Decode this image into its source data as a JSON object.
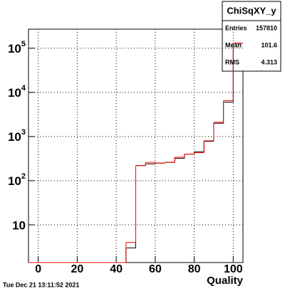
{
  "chart_data": {
    "type": "histogram",
    "x_label": "Quality",
    "log_y": true,
    "grid": true,
    "bins": [
      -5,
      0,
      5,
      10,
      15,
      20,
      25,
      30,
      35,
      40,
      45,
      50,
      55,
      60,
      65,
      70,
      75,
      80,
      85,
      90,
      95,
      100,
      105
    ],
    "series": [
      {
        "color": "#000000",
        "values": [
          0,
          0,
          0,
          0,
          0,
          0,
          0,
          0,
          0,
          0,
          3,
          220,
          240,
          250,
          260,
          320,
          400,
          450,
          780,
          2000,
          6000,
          130000
        ]
      },
      {
        "color": "#ff0000",
        "values": [
          0,
          0,
          0,
          0,
          0,
          0,
          0,
          0,
          0,
          0,
          4,
          220,
          260,
          250,
          260,
          340,
          400,
          430,
          800,
          2100,
          6500,
          130000
        ]
      }
    ],
    "xlim": [
      -5,
      105
    ],
    "xticks": [
      0,
      20,
      40,
      60,
      80,
      100
    ],
    "ylim": [
      1.4,
      270000
    ],
    "yticks": [
      {
        "value": 10,
        "label": "10"
      },
      {
        "value": 100,
        "label": "10",
        "exponent": "2"
      },
      {
        "value": 1000,
        "label": "10",
        "exponent": "3"
      },
      {
        "value": 10000,
        "label": "10",
        "exponent": "4"
      },
      {
        "value": 100000,
        "label": "10",
        "exponent": "5"
      }
    ],
    "stats": {
      "title": "ChiSqXY_y",
      "rows": [
        {
          "label": "Entries",
          "value": 157810
        },
        {
          "label": "Mean",
          "value": 101.6
        },
        {
          "label": "RMS",
          "value": 4.313
        }
      ]
    },
    "date": "Tue Dec 21 13:11:52 2021"
  }
}
